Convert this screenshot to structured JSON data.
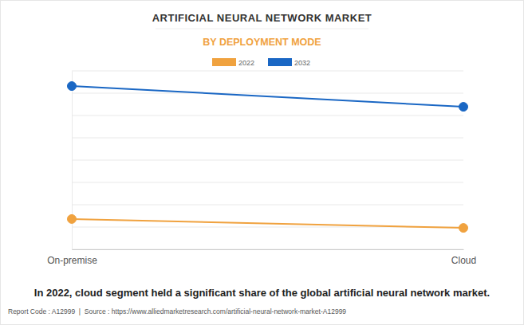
{
  "chart_data": {
    "type": "line",
    "title": "ARTIFICIAL NEURAL NETWORK MARKET",
    "subtitle": "BY DEPLOYMENT MODE",
    "categories": [
      "On-premise",
      "Cloud"
    ],
    "series": [
      {
        "name": "2022",
        "color": "#f0a23f",
        "values": [
          1.36,
          0.96
        ],
        "marker": "circle"
      },
      {
        "name": "2032",
        "color": "#1a67c4",
        "values": [
          7.32,
          6.39
        ],
        "marker": "circle"
      }
    ],
    "ylim": [
      0,
      8
    ],
    "yticks": [
      0,
      1,
      2,
      3,
      4,
      5,
      6,
      7,
      8
    ],
    "grid": true,
    "tick_labels": "x",
    "legend": "top",
    "annotations": [
      "In 2022, cloud segment held a significant share of the global artificial neural network market."
    ],
    "source": "Report Code : A12999  |  Source : https://www.alliedmarketresearch.com/artificial-neural-network-market-A12999"
  }
}
